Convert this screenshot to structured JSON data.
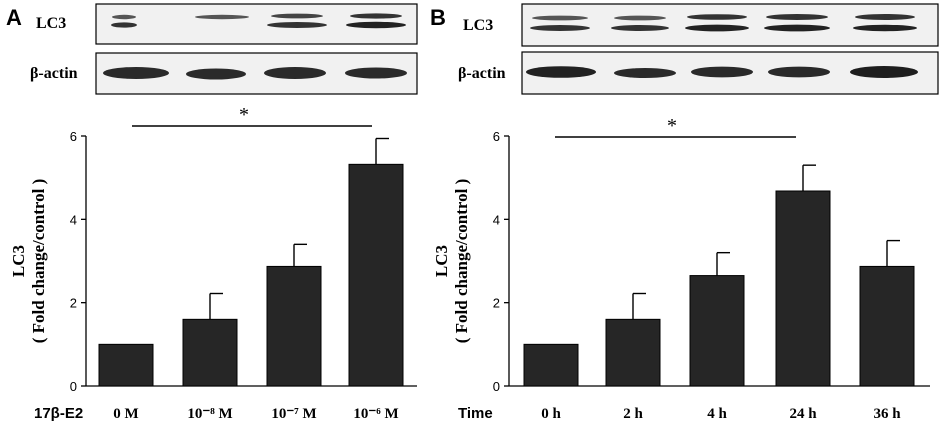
{
  "panels": [
    {
      "letter": "A",
      "blot_labels": [
        "LC3",
        "β-actin"
      ],
      "significance": "*",
      "chart_data": {
        "type": "bar",
        "x_title": "17β-E2",
        "categories": [
          "0 M",
          "10⁻⁸ M",
          "10⁻⁷ M",
          "10⁻⁶ M"
        ],
        "values": [
          1.0,
          1.6,
          2.87,
          5.32
        ],
        "errors": [
          0,
          0.62,
          0.53,
          0.62
        ],
        "ylabel_line1": "LC3",
        "ylabel_line2": "( Fold change/control )",
        "ylim": [
          0,
          6
        ],
        "yticks": [
          "0",
          "2",
          "4",
          "6"
        ],
        "bar_color": "#262626"
      }
    },
    {
      "letter": "B",
      "blot_labels": [
        "LC3",
        "β-actin"
      ],
      "significance": "*",
      "chart_data": {
        "type": "bar",
        "x_title": "Time",
        "categories": [
          "0 h",
          "2 h",
          "4 h",
          "24 h",
          "36 h"
        ],
        "values": [
          1.0,
          1.6,
          2.65,
          4.68,
          2.87
        ],
        "errors": [
          0,
          0.62,
          0.55,
          0.62,
          0.62
        ],
        "ylabel_line1": "LC3",
        "ylabel_line2": "( Fold change/control )",
        "ylim": [
          0,
          6
        ],
        "yticks": [
          "0",
          "2",
          "4",
          "6"
        ],
        "bar_color": "#262626"
      }
    }
  ]
}
